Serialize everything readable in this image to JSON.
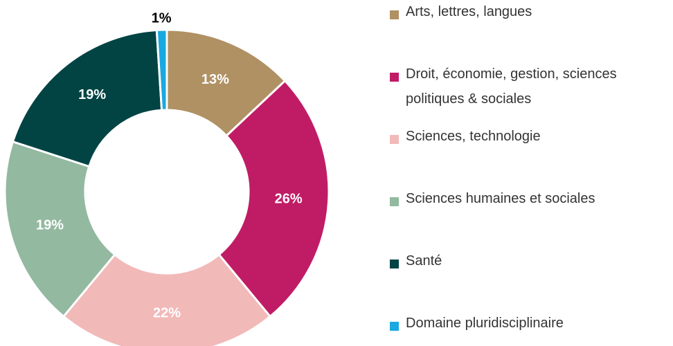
{
  "chart_data": {
    "type": "donut",
    "categories": [
      "Arts, lettres, langues",
      "Droit, économie, gestion, sciences politiques & sociales",
      "Sciences, technologie",
      "Sciences humaines et sociales",
      "Santé",
      "Domaine pluridisciplinaire"
    ],
    "values": [
      13,
      26,
      22,
      19,
      19,
      1
    ],
    "value_labels": [
      "13%",
      "26%",
      "22%",
      "19%",
      "19%",
      "1%"
    ],
    "colors": [
      "#b09163",
      "#c01c66",
      "#f2b9b9",
      "#93b9a0",
      "#024444",
      "#1aa8e0"
    ],
    "legend": "right"
  }
}
